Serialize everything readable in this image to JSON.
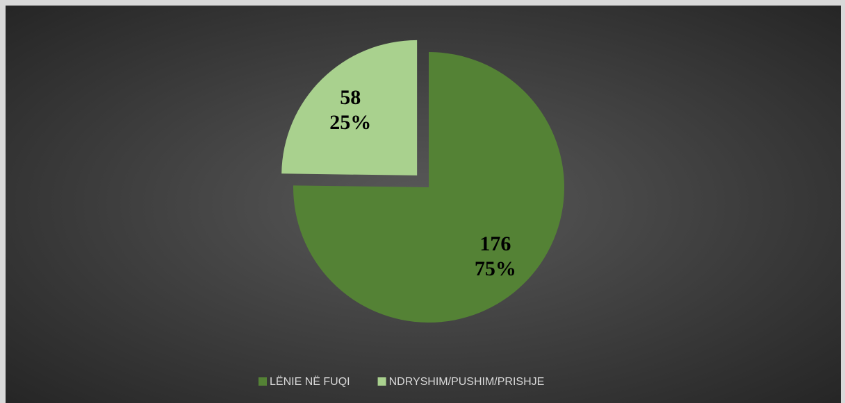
{
  "chart_data": {
    "type": "pie",
    "categories": [
      "LËNIE NË FUQI",
      "NDRYSHIM/PUSHIM/PRISHJE"
    ],
    "values": [
      176,
      58
    ],
    "percentage_labels": [
      "75%",
      "25%"
    ],
    "colors": [
      "#548235",
      "#a9d18e"
    ],
    "exploded": [
      false,
      true
    ],
    "legend": "bottom"
  }
}
